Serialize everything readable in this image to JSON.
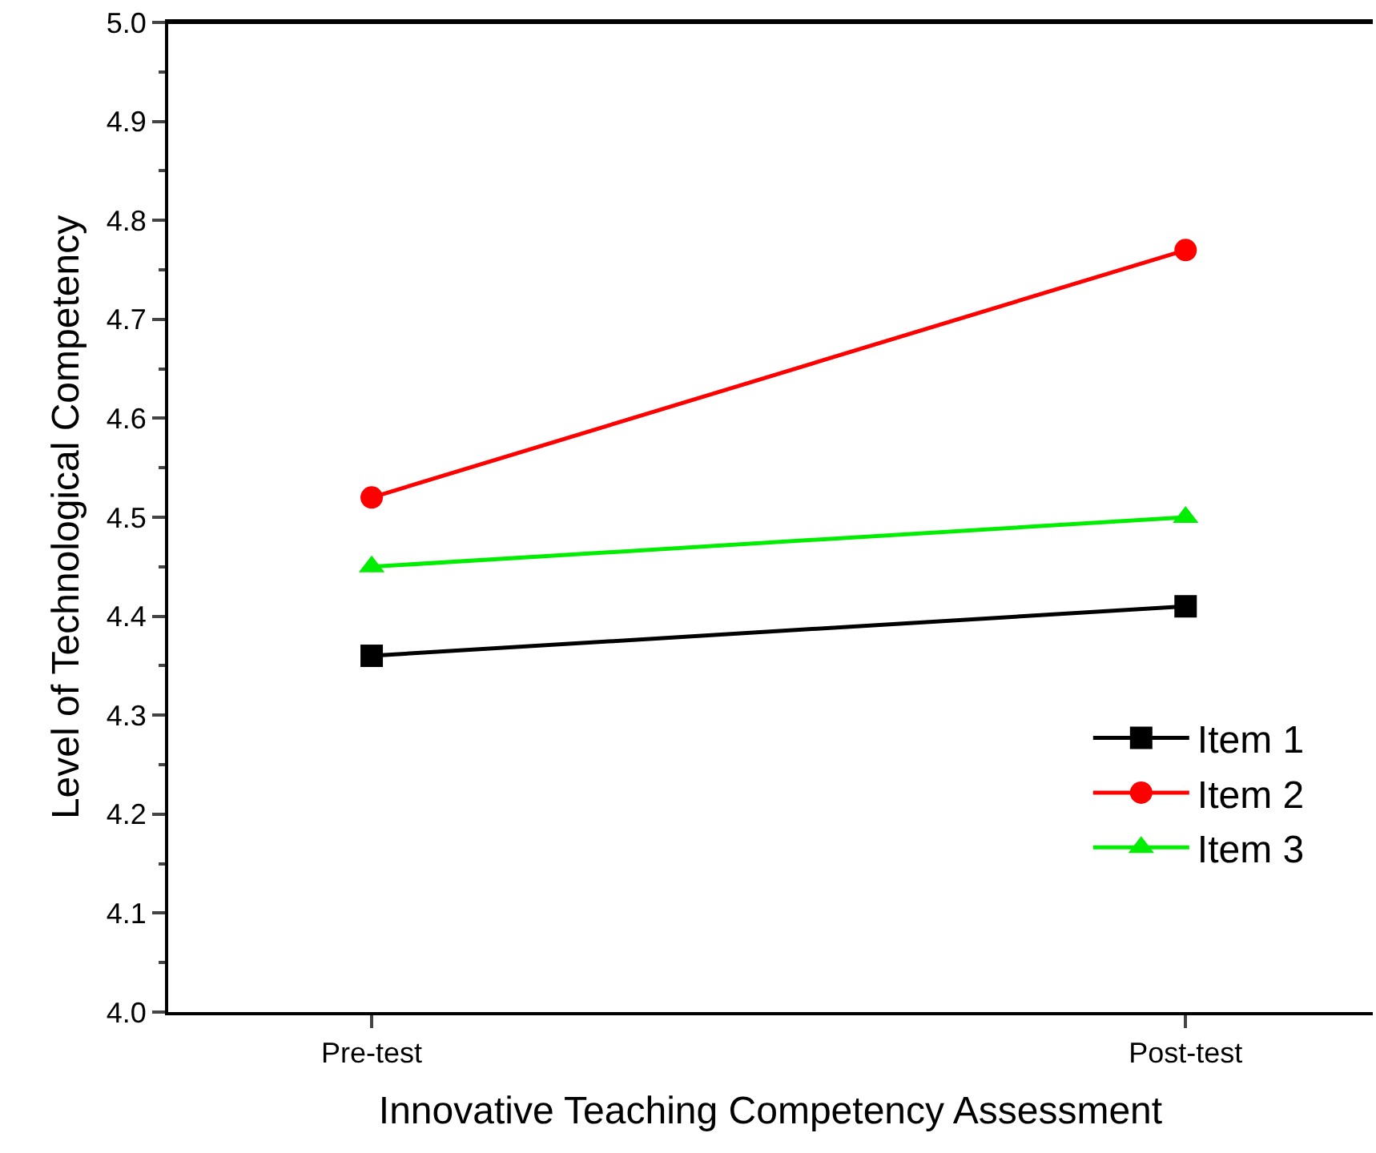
{
  "chart_data": {
    "type": "line",
    "xlabel": "Innovative Teaching Competency Assessment",
    "ylabel": "Level of Technological Competency",
    "categories": [
      "Pre-test",
      "Post-test"
    ],
    "series": [
      {
        "name": "Item 1",
        "color": "#000000",
        "marker": "square",
        "values": [
          4.36,
          4.41
        ]
      },
      {
        "name": "Item 2",
        "color": "#ff0000",
        "marker": "circle",
        "values": [
          4.52,
          4.77
        ]
      },
      {
        "name": "Item 3",
        "color": "#00ee00",
        "marker": "triangle",
        "values": [
          4.45,
          4.5
        ]
      }
    ],
    "ylim": [
      4.0,
      5.0
    ],
    "yticks": [
      {
        "value": 4.0,
        "label": "4.0"
      },
      4.1,
      4.2,
      4.3,
      4.4,
      4.5,
      4.6,
      4.7,
      4.8,
      4.9,
      {
        "value": 5.0,
        "label": "5.0"
      }
    ],
    "legend": "bottom right",
    "line_style": "solid"
  }
}
